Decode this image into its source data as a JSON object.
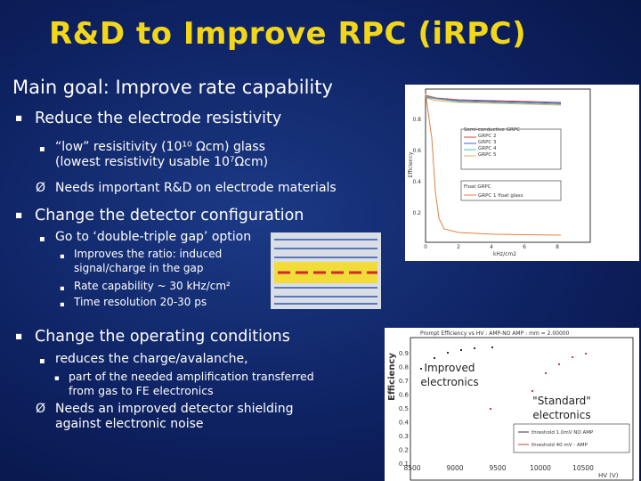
{
  "title": "R&D to Improve RPC (iRPC)",
  "main_goal": "Main goal: Improve rate capability",
  "sections": [
    {
      "text": "Reduce the electrode resistivity",
      "items": [
        "“low” resisitivity (10¹⁰ Ωcm) glass (lowest resistivity usable 10⁷Ωcm)"
      ],
      "arrow": "Needs important R&D on electrode materials"
    },
    {
      "text": "Change the detector configuration",
      "items": [
        "Go to ‘double-triple gap’ option"
      ],
      "subitems": [
        "Improves the ratio: induced signal/charge in the gap",
        "Rate capability ~ 30 kHz/cm²",
        "Time resolution 20-30 ps"
      ]
    },
    {
      "text": "Change the operating conditions",
      "items": [
        "reduces the charge/avalanche,",
        "part of the needed amplification transferred from gas to FE electronics"
      ],
      "arrow": "Needs an improved detector shielding against electronic noise"
    }
  ],
  "plot_rate": {
    "y_label": "Efficiency",
    "x_label": "kHz/cm2",
    "yticks": [
      "0.2",
      "0.4",
      "0.6",
      "0.8"
    ],
    "xticks": [
      "0",
      "2",
      "4",
      "6",
      "8"
    ],
    "legend_semi": [
      "Semi-conductive GRPC",
      "GRPC 2",
      "GRPC 3",
      "GRPC 4",
      "GRPC 5"
    ],
    "legend_float": [
      "Float GRPC",
      "GRPC 1 float glass"
    ]
  },
  "plot_hv": {
    "title": "Prompt Efficiency vs HV : AMP-NO AMP : mm = 2.00000",
    "y_label": "Efficiency",
    "x_label": "HV (V)",
    "yticks": [
      "0.9",
      "0.8",
      "0.7",
      "0.6",
      "0.5",
      "0.4",
      "0.3",
      "0.2",
      "0.1"
    ],
    "xticks": [
      "8500",
      "9000",
      "9500",
      "10000",
      "10500"
    ],
    "legend": [
      "threshold 1.0mV NO AMP",
      "threshold 40 mV - AMP"
    ],
    "annotation_improved": "Improved electronics",
    "annotation_standard": "\"Standard\" electronics"
  }
}
